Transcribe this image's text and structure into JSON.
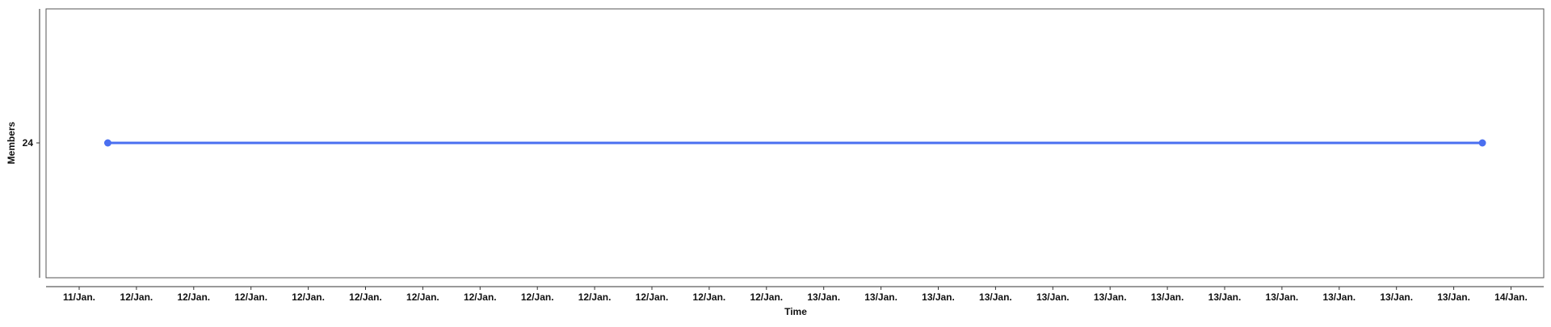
{
  "chart_data": {
    "type": "line",
    "title": "",
    "xlabel": "Time",
    "ylabel": "Members",
    "x_tick_labels": [
      "11/Jan.",
      "12/Jan.",
      "12/Jan.",
      "12/Jan.",
      "12/Jan.",
      "12/Jan.",
      "12/Jan.",
      "12/Jan.",
      "12/Jan.",
      "12/Jan.",
      "12/Jan.",
      "12/Jan.",
      "12/Jan.",
      "13/Jan.",
      "13/Jan.",
      "13/Jan.",
      "13/Jan.",
      "13/Jan.",
      "13/Jan.",
      "13/Jan.",
      "13/Jan.",
      "13/Jan.",
      "13/Jan.",
      "13/Jan.",
      "13/Jan.",
      "14/Jan."
    ],
    "y_ticks": [
      24
    ],
    "series": [
      {
        "x": [
          0.5,
          24.5
        ],
        "values": [
          24,
          24
        ],
        "color": "#4a6ff0"
      }
    ],
    "grid": false,
    "legend": "none"
  }
}
